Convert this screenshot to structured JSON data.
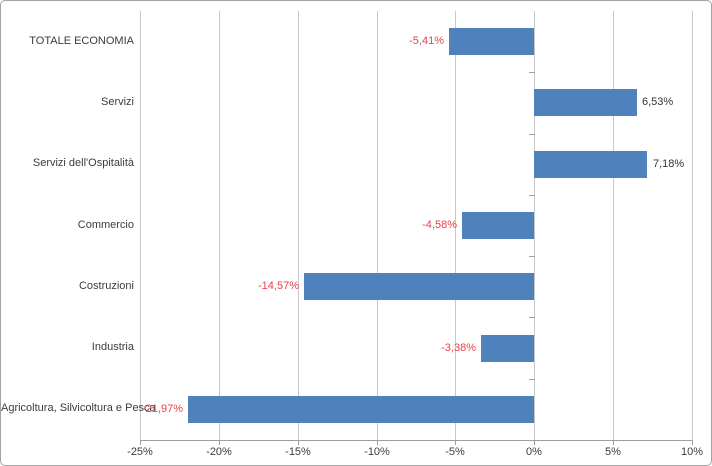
{
  "chart_data": {
    "type": "bar",
    "orientation": "horizontal",
    "categories": [
      "TOTALE ECONOMIA",
      "Servizi",
      "Servizi dell'Ospitalità",
      "Commercio",
      "Costruzioni",
      "Industria",
      "Agricoltura, Silvicoltura e Pesca"
    ],
    "values": [
      -5.41,
      6.53,
      7.18,
      -4.58,
      -14.57,
      -3.38,
      -21.97
    ],
    "value_labels": [
      "-5,41%",
      "6,53%",
      "7,18%",
      "-4,58%",
      "-14,57%",
      "-3,38%",
      "-21,97%"
    ],
    "x_ticks": [
      -25,
      -20,
      -15,
      -10,
      -5,
      0,
      5,
      10
    ],
    "x_tick_labels": [
      "-25%",
      "-20%",
      "-15%",
      "-10%",
      "-5%",
      "0%",
      "5%",
      "10%"
    ],
    "xlim": [
      -25,
      10
    ],
    "grid": true,
    "legend": "none",
    "colors": {
      "bar": "#4f81bd",
      "negative_label": "#e8414a",
      "positive_label": "#333333",
      "gridline": "#c9c9c9",
      "axis_line": "#9e9e9e"
    }
  }
}
